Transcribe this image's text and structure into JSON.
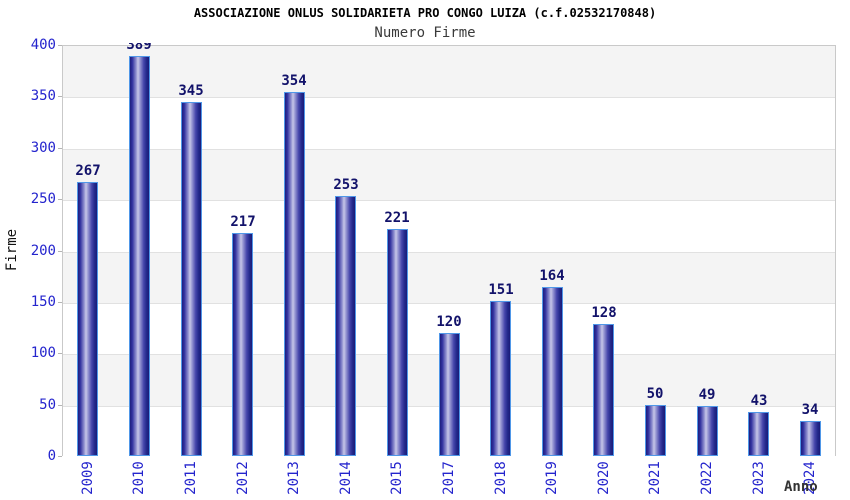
{
  "header": {
    "title": "ASSOCIAZIONE ONLUS SOLIDARIETA PRO CONGO LUIZA (c.f.02532170848)",
    "subtitle": "Numero Firme"
  },
  "chart_data": {
    "type": "bar",
    "title": "ASSOCIAZIONE ONLUS SOLIDARIETA PRO CONGO LUIZA (c.f.02532170848)",
    "subtitle": "Numero Firme",
    "categories": [
      "2009",
      "2010",
      "2011",
      "2012",
      "2013",
      "2014",
      "2015",
      "2017",
      "2018",
      "2019",
      "2020",
      "2021",
      "2022",
      "2023",
      "2024"
    ],
    "values": [
      267,
      389,
      345,
      217,
      354,
      253,
      221,
      120,
      151,
      164,
      128,
      50,
      49,
      43,
      34
    ],
    "xlabel": "Anno",
    "ylabel": "Firme",
    "ylim": [
      0,
      400
    ],
    "yticks": [
      0,
      50,
      100,
      150,
      200,
      250,
      300,
      350,
      400
    ],
    "grid": "alternating horizontal bands",
    "legend_position": "none",
    "bar_labels_shown": true
  },
  "colors": {
    "axis_text": "#2424cd",
    "value_label": "#12126a",
    "bar_dark": "#1e1e7e",
    "bar_highlight": "#c6c6e8",
    "bar_border": "#4f97e8",
    "band_gray": "#f4f4f4",
    "grid_line": "#e1e1e1",
    "plot_border": "#c9c9c9",
    "title_color": "#000000",
    "subtitle_color": "#3a3a3a",
    "xlabel_color": "#333333"
  }
}
